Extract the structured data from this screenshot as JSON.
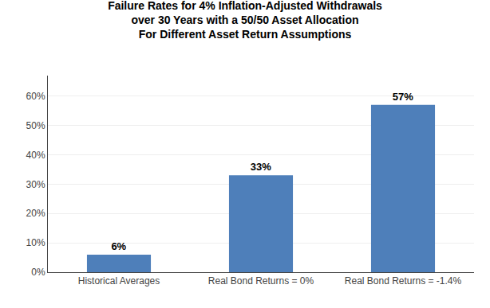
{
  "chart_data": {
    "type": "bar",
    "title": "Failure Rates for 4% Inflation-Adjusted Withdrawals\nover 30 Years with a 50/50 Asset Allocation\nFor Different Asset Return Assumptions",
    "categories": [
      "Historical Averages",
      "Real Bond Returns = 0%",
      "Real Bond Returns = -1.4%"
    ],
    "values": [
      0.06,
      0.33,
      0.57
    ],
    "value_labels": [
      "6%",
      "33%",
      "57%"
    ],
    "data_labels": true,
    "color": "#4E7FBA",
    "ylim": [
      0,
      0.67
    ],
    "yticks": [
      {
        "value": 0.0,
        "label": "0%"
      },
      {
        "value": 0.1,
        "label": "10%"
      },
      {
        "value": 0.2,
        "label": "20%"
      },
      {
        "value": 0.3,
        "label": "30%"
      },
      {
        "value": 0.4,
        "label": "40%"
      },
      {
        "value": 0.5,
        "label": "50%"
      },
      {
        "value": 0.6,
        "label": "60%"
      }
    ],
    "grid": true
  }
}
